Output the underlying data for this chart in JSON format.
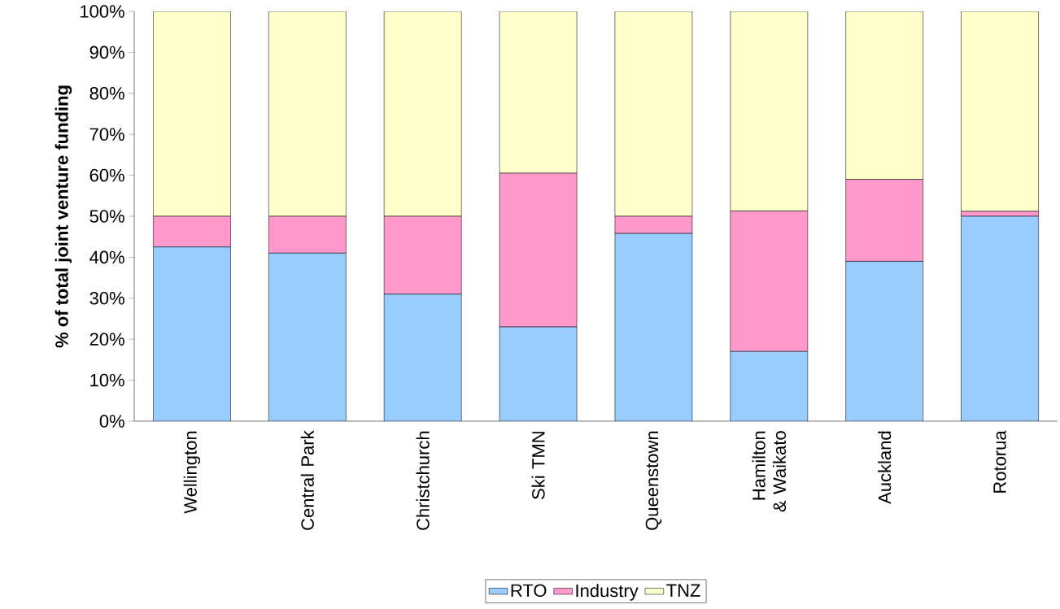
{
  "chart_data": {
    "type": "bar",
    "stacked": true,
    "ylabel": "% of total joint venture funding",
    "categories": [
      "Wellington",
      "Central Park",
      "Christchurch",
      "Ski TMN",
      "Queenstown",
      "Hamilton & Waikato",
      "Auckland",
      "Rotorua"
    ],
    "series": [
      {
        "name": "RTO",
        "color": "#99ccff",
        "values": [
          42.5,
          41,
          31,
          23,
          45.8,
          17,
          39,
          50
        ]
      },
      {
        "name": "Industry",
        "color": "#ff99cc",
        "values": [
          7.5,
          9,
          19,
          37.5,
          4.2,
          34.3,
          20,
          1.2
        ]
      },
      {
        "name": "TNZ",
        "color": "#ffffcc",
        "values": [
          50,
          50,
          50,
          39.5,
          50,
          48.7,
          41,
          48.8
        ]
      }
    ],
    "ylim": [
      0,
      100
    ],
    "yticks": [
      {
        "value": 0,
        "label": "0%"
      },
      {
        "value": 10,
        "label": "10%"
      },
      {
        "value": 20,
        "label": "20%"
      },
      {
        "value": 30,
        "label": "30%"
      },
      {
        "value": 40,
        "label": "40%"
      },
      {
        "value": 50,
        "label": "50%"
      },
      {
        "value": 60,
        "label": "60%"
      },
      {
        "value": 70,
        "label": "70%"
      },
      {
        "value": 80,
        "label": "80%"
      },
      {
        "value": 90,
        "label": "90%"
      },
      {
        "value": 100,
        "label": "100%"
      }
    ],
    "legend": "bottom"
  }
}
